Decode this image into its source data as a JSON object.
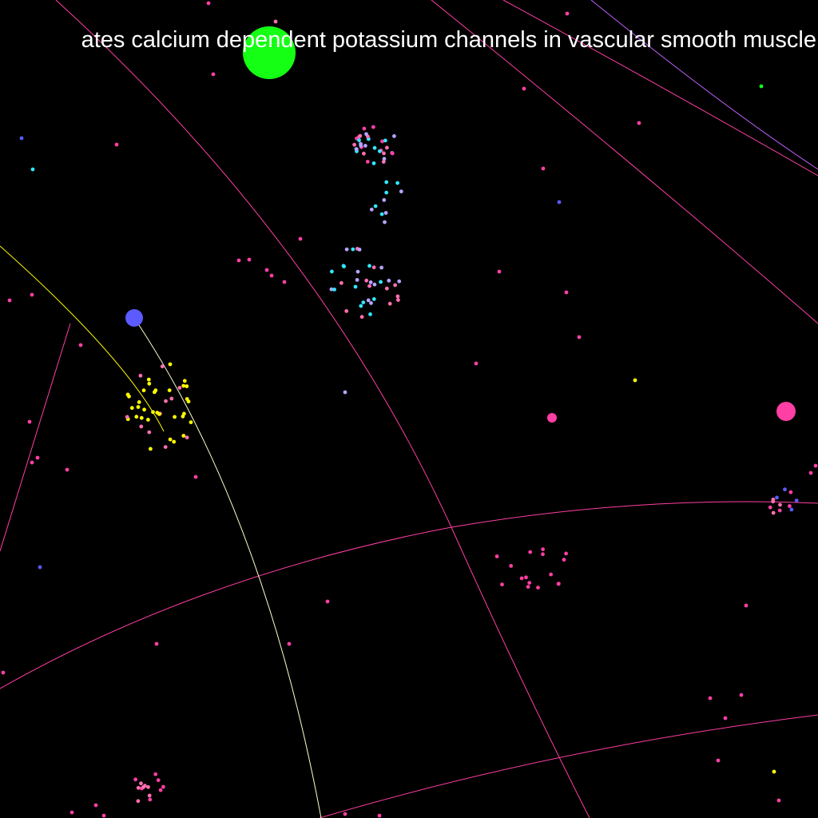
{
  "banner": {
    "text": "ates calcium dependent potassium channels in vascular smooth muscle"
  },
  "palette": {
    "background": "#000000",
    "text": "#ffffff",
    "magenta": "#ff3fa4",
    "pink": "#ff6fb0",
    "cyan": "#2fe8ff",
    "lavender": "#b7a3ff",
    "blue": "#5b5bff",
    "yellow": "#ffff00",
    "green": "#14ff14",
    "violet": "#c060ff"
  }
}
